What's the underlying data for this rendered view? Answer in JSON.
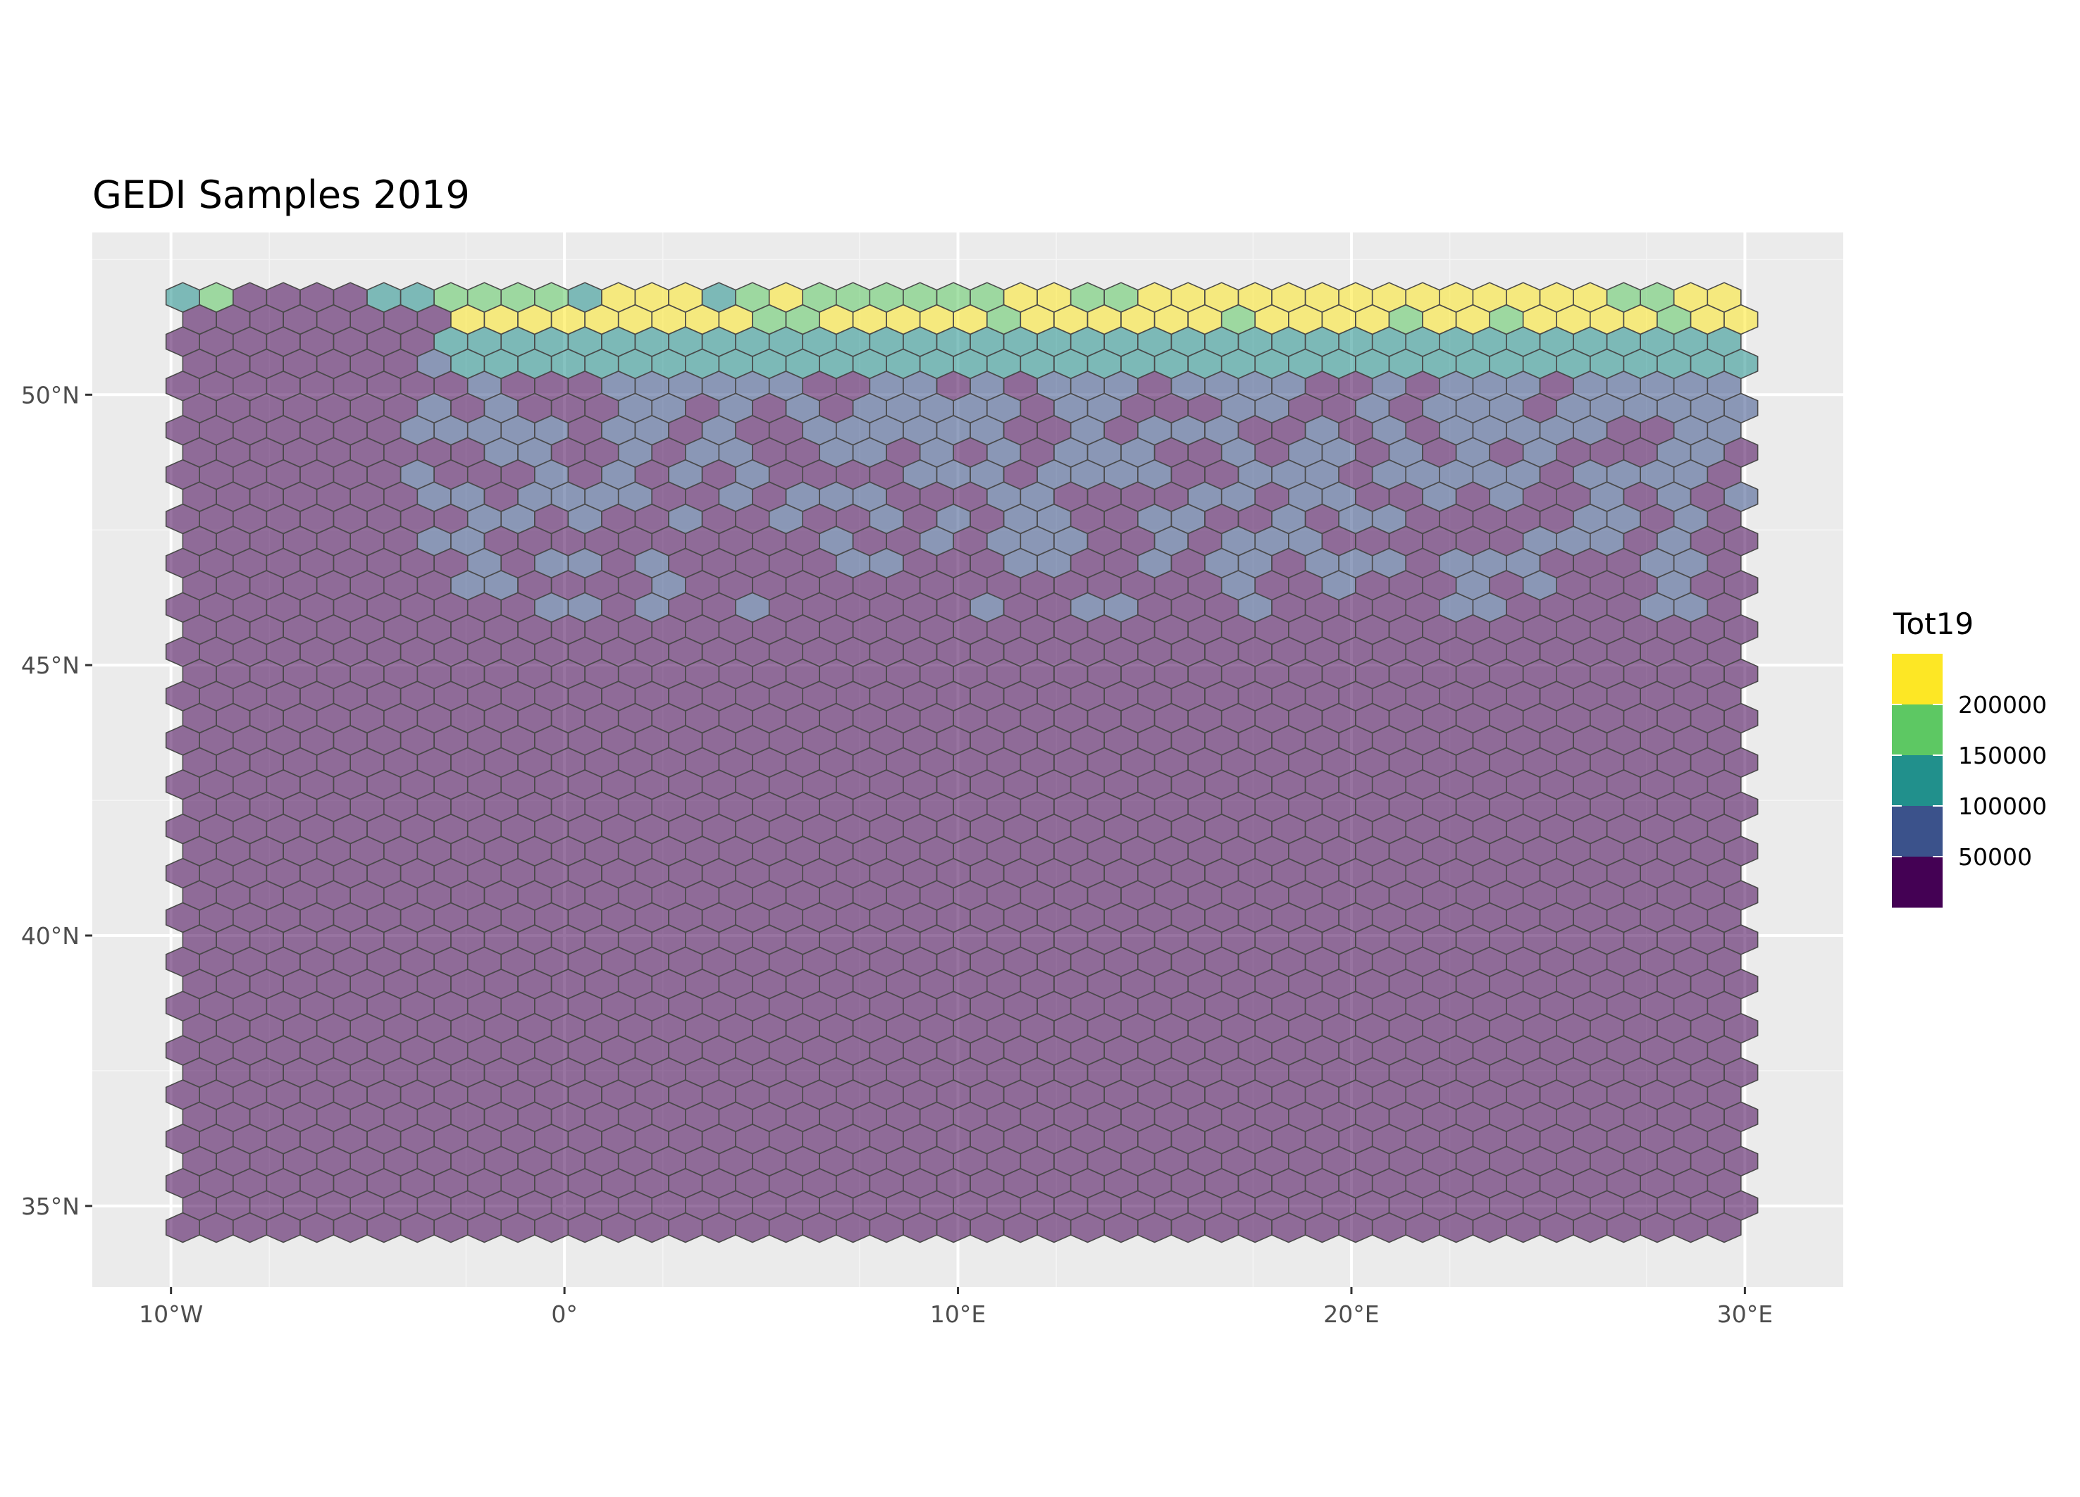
{
  "chart_data": {
    "type": "heatmap",
    "subtype": "hexbin-map",
    "title": "GEDI Samples 2019",
    "xlabel": "",
    "ylabel": "",
    "x_ticks": [
      {
        "value": -10,
        "label": "10°W"
      },
      {
        "value": 0,
        "label": "0°"
      },
      {
        "value": 10,
        "label": "10°E"
      },
      {
        "value": 20,
        "label": "20°E"
      },
      {
        "value": 30,
        "label": "30°E"
      }
    ],
    "y_ticks": [
      {
        "value": 35,
        "label": "35°N"
      },
      {
        "value": 40,
        "label": "40°N"
      },
      {
        "value": 45,
        "label": "45°N"
      },
      {
        "value": 50,
        "label": "50°N"
      }
    ],
    "xlim": [
      -12,
      32.5
    ],
    "ylim": [
      33.5,
      53.0
    ],
    "grid": true,
    "hex_extent": {
      "lon": [
        -9.7,
        29.9
      ],
      "lat": [
        34.6,
        51.8
      ]
    },
    "hex_cols": 47,
    "hex_rows": 43,
    "hex_fill_opacity": 0.55,
    "legend": {
      "title": "Tot19",
      "position": "right",
      "bins": [
        {
          "color": "#440154",
          "range": [
            0,
            50000
          ]
        },
        {
          "color": "#3B528B",
          "range": [
            50000,
            100000
          ]
        },
        {
          "color": "#21908C",
          "range": [
            100000,
            150000
          ]
        },
        {
          "color": "#5DC863",
          "range": [
            150000,
            200000
          ]
        },
        {
          "color": "#FDE725",
          "range": [
            200000,
            250000
          ]
        }
      ],
      "labels": [
        "50000",
        "100000",
        "150000",
        "200000"
      ]
    },
    "hex_bins": [
      {
        "lon_range": [
          -9.7,
          29.9
        ],
        "lat_range": [
          34.6,
          46.0
        ],
        "value_range": [
          0,
          50000
        ],
        "note": "predominant class across southern and central area"
      },
      {
        "lon_range": [
          -4.0,
          29.9
        ],
        "lat_range": [
          46.0,
          51.3
        ],
        "value_range": [
          50000,
          100000
        ],
        "note": "scattered and clustered cells"
      },
      {
        "lon_range": [
          -3.0,
          29.9
        ],
        "lat_range": [
          50.5,
          51.4
        ],
        "value_range": [
          100000,
          150000
        ]
      },
      {
        "lon_range": [
          -3.0,
          29.9
        ],
        "lat_range": [
          51.2,
          51.8
        ],
        "value_range": [
          150000,
          250000
        ]
      }
    ],
    "hex_cells": [
      [
        51.8,
        -9.7,
        2
      ],
      [
        51.8,
        -8.8,
        3
      ],
      [
        51.8,
        -4.5,
        2
      ],
      [
        51.8,
        -3.7,
        2
      ],
      [
        51.8,
        -2.8,
        3
      ],
      [
        51.8,
        -2.0,
        3
      ],
      [
        51.8,
        -1.1,
        3
      ],
      [
        51.8,
        -0.3,
        3
      ],
      [
        51.8,
        0.5,
        2
      ],
      [
        51.8,
        3.9,
        2
      ],
      [
        51.8,
        4.8,
        3
      ],
      [
        51.8,
        5.7,
        4
      ],
      [
        51.8,
        6.5,
        3
      ],
      [
        51.8,
        7.4,
        3
      ],
      [
        51.8,
        8.2,
        3
      ],
      [
        51.8,
        9.1,
        3
      ],
      [
        51.8,
        10.0,
        3
      ],
      [
        51.8,
        10.8,
        3
      ],
      [
        51.8,
        11.7,
        4
      ],
      [
        51.8,
        12.5,
        4
      ],
      [
        51.8,
        13.4,
        3
      ],
      [
        51.8,
        14.3,
        3
      ],
      [
        51.8,
        15.1,
        4
      ],
      [
        51.8,
        16.0,
        4
      ],
      [
        51.8,
        16.9,
        4
      ],
      [
        51.8,
        17.7,
        4
      ],
      [
        51.8,
        18.6,
        4
      ],
      [
        51.8,
        19.4,
        4
      ],
      [
        51.8,
        20.3,
        4
      ],
      [
        51.8,
        21.2,
        4
      ],
      [
        51.8,
        22.0,
        4
      ],
      [
        51.8,
        22.9,
        4
      ],
      [
        51.8,
        23.8,
        4
      ],
      [
        51.8,
        24.6,
        4
      ],
      [
        51.8,
        25.5,
        4
      ],
      [
        51.8,
        26.3,
        4
      ],
      [
        51.8,
        27.2,
        3
      ],
      [
        51.8,
        28.1,
        3
      ],
      [
        51.8,
        28.9,
        4
      ],
      [
        51.8,
        29.8,
        4
      ],
      [
        51.3,
        5.2,
        3
      ],
      [
        51.3,
        6.1,
        3
      ],
      [
        51.3,
        11.2,
        3
      ],
      [
        51.3,
        17.3,
        3
      ],
      [
        51.3,
        21.6,
        3
      ],
      [
        51.3,
        24.2,
        3
      ],
      [
        51.3,
        25.9,
        4
      ],
      [
        51.3,
        28.5,
        3
      ]
    ]
  }
}
